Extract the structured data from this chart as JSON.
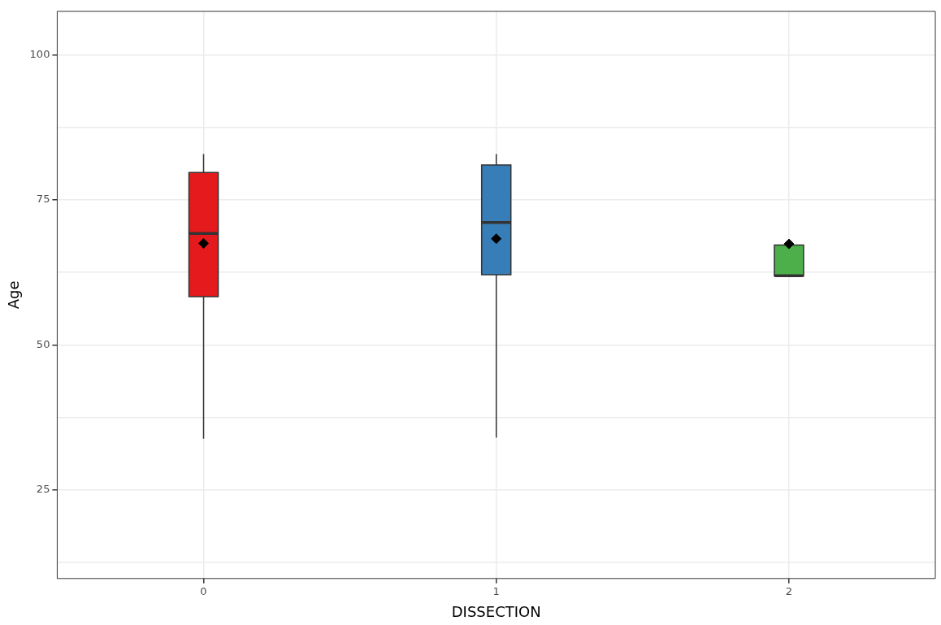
{
  "chart_data": {
    "type": "box",
    "xlabel": "DISSECTION",
    "ylabel": "Age",
    "categories": [
      "0",
      "1",
      "2"
    ],
    "colors": [
      "#e41a1c",
      "#377eb8",
      "#4daf4a"
    ],
    "boxes": [
      {
        "low": 33.8,
        "q1": 58.3,
        "median": 69.2,
        "q3": 79.7,
        "high": 82.9,
        "mean": 67.5
      },
      {
        "low": 34.0,
        "q1": 62.1,
        "median": 71.1,
        "q3": 81.0,
        "high": 82.9,
        "mean": 68.3
      },
      {
        "low": 61.9,
        "q1": 61.9,
        "median": 61.9,
        "q3": 67.2,
        "high": 67.2,
        "mean": 67.4
      }
    ],
    "ylim": [
      9.7,
      107.5
    ],
    "yticks": [
      {
        "value": 12.5,
        "label": null
      },
      25,
      {
        "value": 37.5,
        "label": null
      },
      50,
      {
        "value": 62.5,
        "label": null
      },
      75,
      {
        "value": 87.5,
        "label": null
      },
      100
    ],
    "grid": true,
    "marker": "diamond"
  }
}
